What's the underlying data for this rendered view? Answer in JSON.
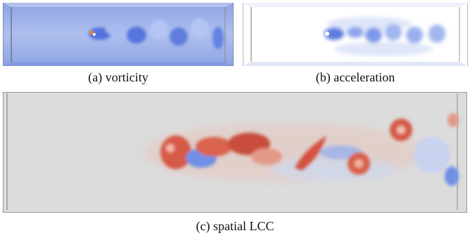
{
  "figure": {
    "panels": [
      {
        "id": "a",
        "caption": "(a) vorticity",
        "field": "vorticity",
        "background": "#9fb3e8",
        "accent": "#3f62d6"
      },
      {
        "id": "b",
        "caption": "(b) acceleration",
        "field": "acceleration",
        "background": "#ffffff",
        "accent": "#6f8ee8"
      },
      {
        "id": "c",
        "caption": "(c) spatial LCC",
        "field": "spatial LCC",
        "background": "#dcdcdc",
        "accent": "#d6513c"
      }
    ]
  }
}
